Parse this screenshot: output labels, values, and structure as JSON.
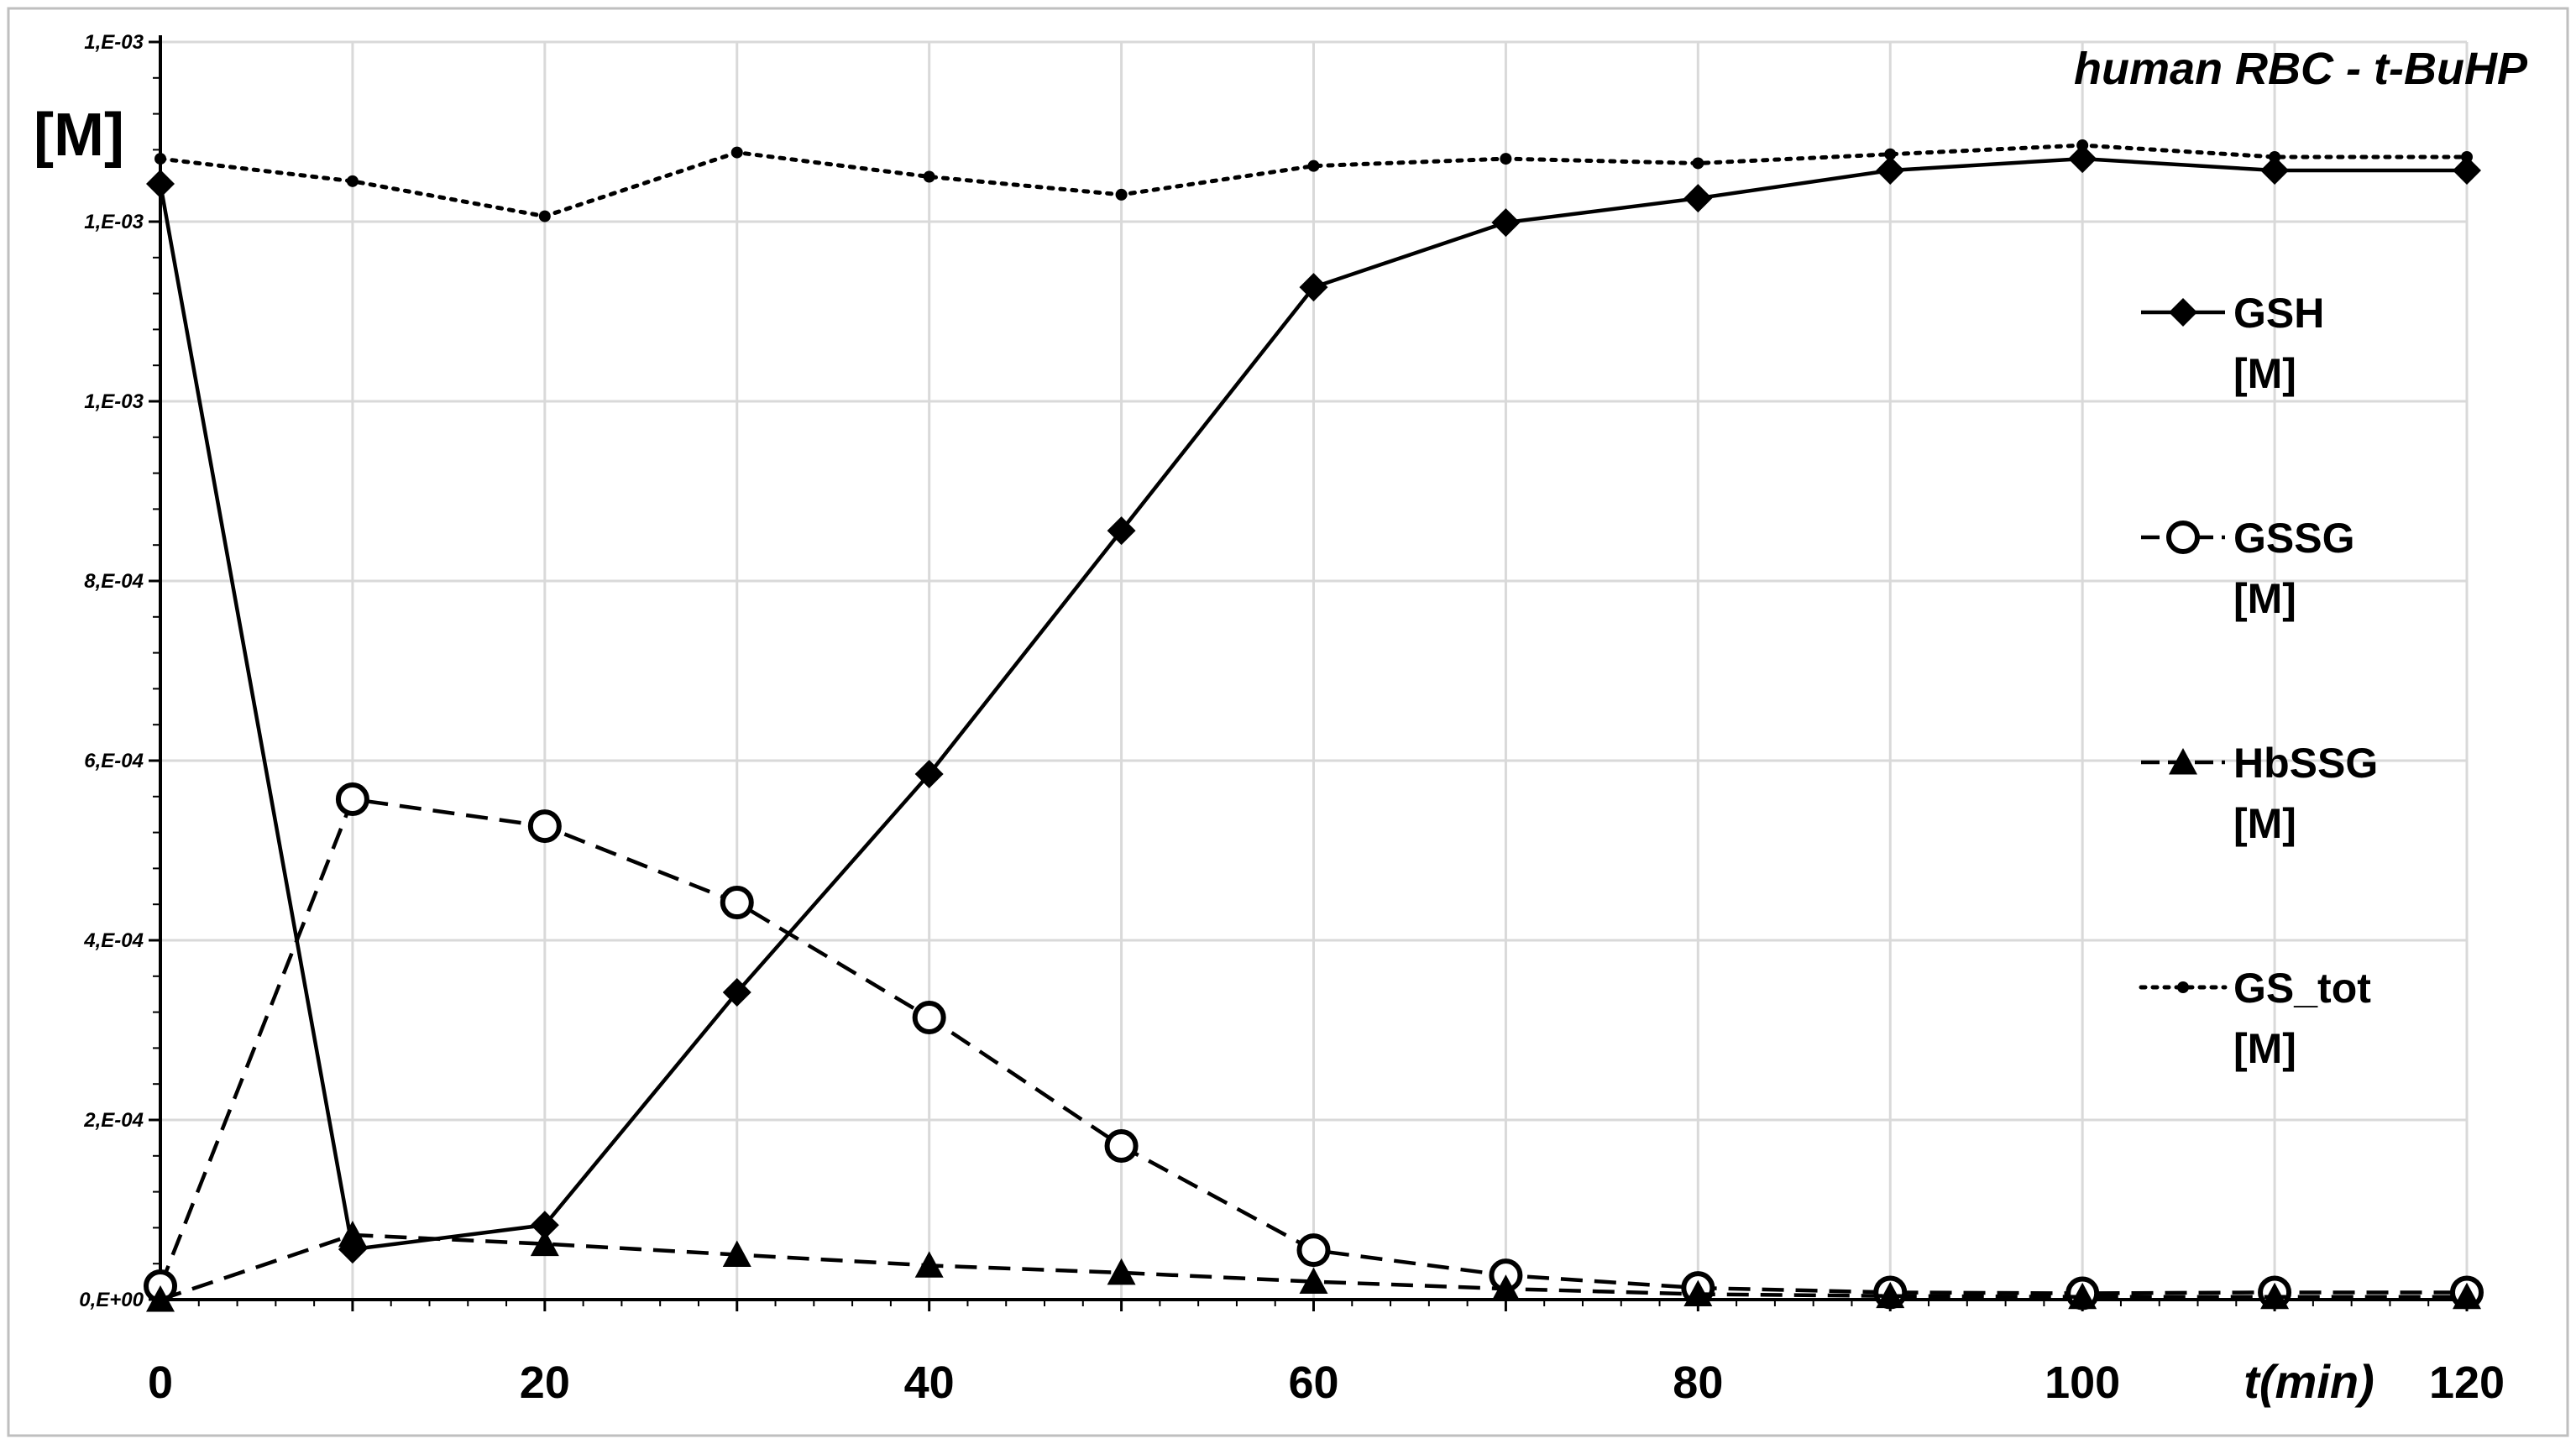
{
  "chart_data": {
    "type": "line",
    "title": "human RBC - t-BuHP",
    "ylabel": "[M]",
    "xlabel": "t(min)",
    "x": [
      0,
      10,
      20,
      30,
      40,
      50,
      60,
      70,
      80,
      90,
      100,
      110,
      120
    ],
    "xlim": [
      0,
      120
    ],
    "ylim": [
      0,
      0.0014
    ],
    "x_ticks": [
      "0",
      "20",
      "40",
      "60",
      "80",
      "100",
      "120"
    ],
    "x_tick_values": [
      0,
      20,
      40,
      60,
      80,
      100,
      120
    ],
    "y_ticks": [
      "0,E+00",
      "2,E-04",
      "4,E-04",
      "6,E-04",
      "8,E-04",
      "1,E-03",
      "1,E-03",
      "1,E-03"
    ],
    "y_tick_values": [
      0,
      0.0002,
      0.0004,
      0.0006,
      0.0008,
      0.001,
      0.0012,
      0.0014
    ],
    "grid": true,
    "legend_position": "right",
    "series": [
      {
        "name": "GSH",
        "name_line2": "[M]",
        "marker": "diamond",
        "line_style": "solid",
        "values": [
          0.001242,
          5.6e-05,
          8.3e-05,
          0.000342,
          0.000585,
          0.000856,
          0.001127,
          0.001199,
          0.001226,
          0.001257,
          0.00127,
          0.001257,
          0.001257
        ]
      },
      {
        "name": "GSSG",
        "name_line2": "[M]",
        "marker": "open-circle",
        "line_style": "dashed",
        "values": [
          1.5e-05,
          0.000557,
          0.000527,
          0.000442,
          0.000314,
          0.000171,
          5.5e-05,
          2.7e-05,
          1.3e-05,
          8e-06,
          7e-06,
          8e-06,
          8e-06
        ]
      },
      {
        "name": "HbSSG",
        "name_line2": "[M]",
        "marker": "triangle",
        "line_style": "dashed",
        "values": [
          0.0,
          7.2e-05,
          6.2e-05,
          5e-05,
          3.8e-05,
          3e-05,
          2e-05,
          1.2e-05,
          6e-06,
          4e-06,
          3e-06,
          3e-06,
          3e-06
        ]
      },
      {
        "name": "GS_tot",
        "name_line2": "[M]",
        "marker": "dot",
        "line_style": "dotted",
        "values": [
          0.00127,
          0.001245,
          0.001206,
          0.001277,
          0.00125,
          0.00123,
          0.001262,
          0.00127,
          0.001265,
          0.001275,
          0.001285,
          0.001272,
          0.001272
        ]
      }
    ]
  }
}
